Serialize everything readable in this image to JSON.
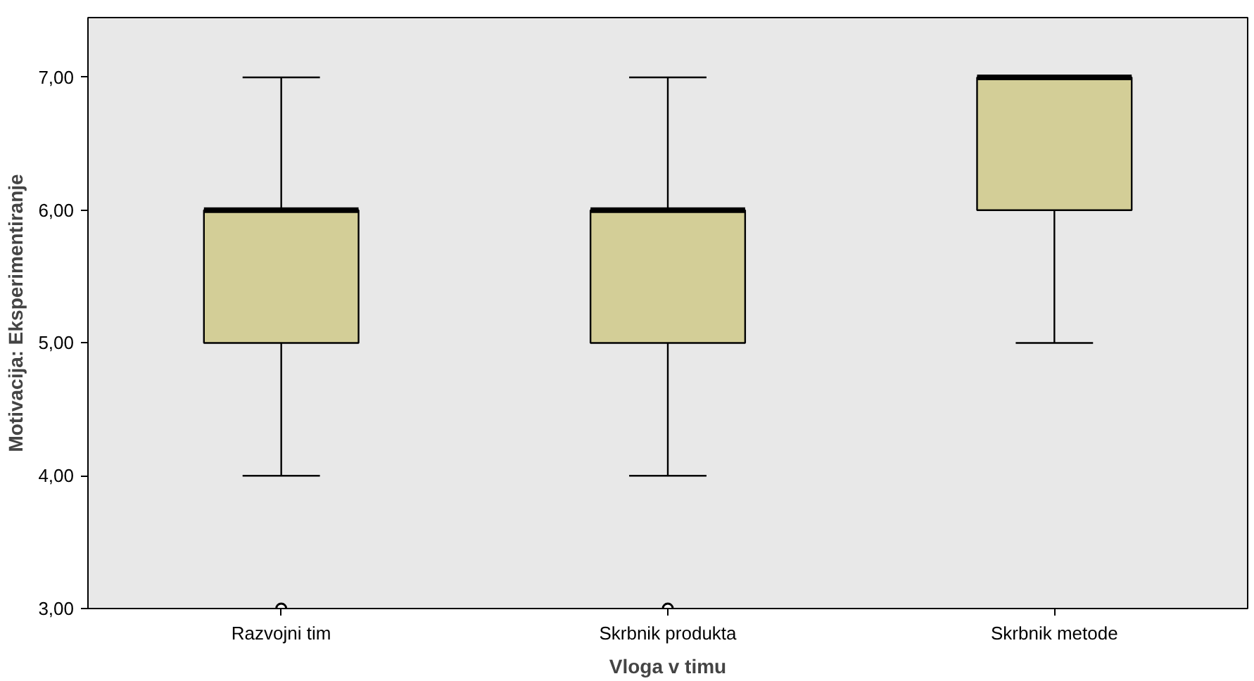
{
  "chart_data": {
    "type": "box",
    "xlabel": "Vloga v timu",
    "ylabel": "Motivacija: Eksperimentiranje",
    "categories": [
      "Razvojni tim",
      "Skrbnik produkta",
      "Skrbnik metode"
    ],
    "boxes": [
      {
        "low": 4,
        "q1": 5,
        "median": 6,
        "q3": 6,
        "high": 7,
        "outliers": [
          3
        ]
      },
      {
        "low": 4,
        "q1": 5,
        "median": 6,
        "q3": 6,
        "high": 7,
        "outliers": [
          3
        ]
      },
      {
        "low": 5,
        "q1": 6,
        "median": 7,
        "q3": 7,
        "high": 7
      }
    ],
    "color": "#d3ce97",
    "ylim": [
      3,
      7.45
    ],
    "yticks": [
      {
        "value": 3,
        "label": "3,00"
      },
      {
        "value": 4,
        "label": "4,00"
      },
      {
        "value": 5,
        "label": "5,00"
      },
      {
        "value": 6,
        "label": "6,00"
      },
      {
        "value": 7,
        "label": "7,00"
      }
    ]
  }
}
